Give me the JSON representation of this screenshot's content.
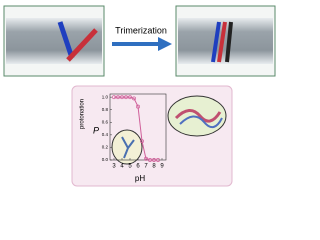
{
  "chart_data": {
    "type": "line",
    "annotation": "Trimerization",
    "xlabel": "pH",
    "ylabel": "P",
    "ylabel_sub": "protonation",
    "x": [
      3,
      3.5,
      4,
      4.5,
      5,
      5.5,
      6,
      6.5,
      7,
      7.5,
      8,
      8.5
    ],
    "series": [
      {
        "color": "#d0609a",
        "values": [
          1,
          1,
          1,
          1,
          1,
          0.98,
          0.85,
          0.3,
          0.02,
          0,
          0,
          0
        ]
      }
    ],
    "xlim": [
      2.5,
      9.5
    ],
    "xticks": [
      3,
      4,
      5,
      6,
      7,
      8,
      9
    ],
    "ylim": [
      0,
      1.05
    ],
    "yticks": [
      {
        "value": 0,
        "label": "0.0"
      },
      0.2,
      0.4,
      0.6,
      0.8,
      {
        "value": 1,
        "label": "1.0"
      }
    ]
  }
}
